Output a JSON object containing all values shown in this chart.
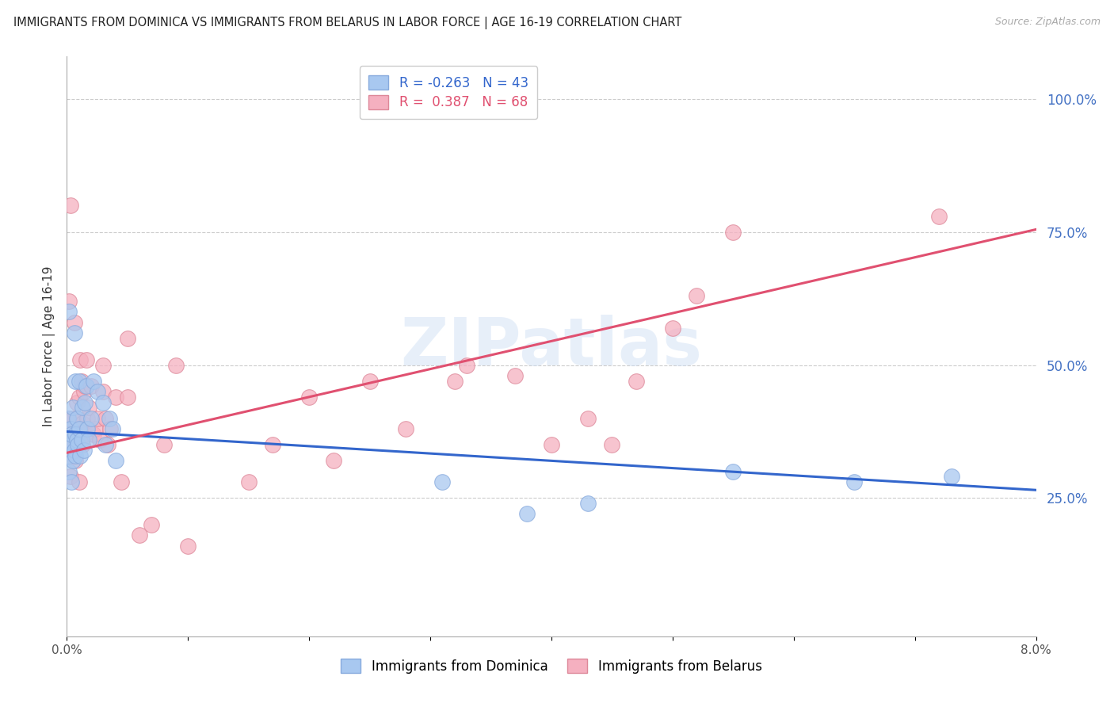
{
  "title": "IMMIGRANTS FROM DOMINICA VS IMMIGRANTS FROM BELARUS IN LABOR FORCE | AGE 16-19 CORRELATION CHART",
  "source": "Source: ZipAtlas.com",
  "ylabel": "In Labor Force | Age 16-19",
  "xlim": [
    0.0,
    0.08
  ],
  "ylim": [
    -0.01,
    1.08
  ],
  "xticks": [
    0.0,
    0.01,
    0.02,
    0.03,
    0.04,
    0.05,
    0.06,
    0.07,
    0.08
  ],
  "xticklabels": [
    "0.0%",
    "",
    "",
    "",
    "",
    "",
    "",
    "",
    "8.0%"
  ],
  "yticks_right": [
    0.25,
    0.5,
    0.75,
    1.0
  ],
  "yticklabels_right": [
    "25.0%",
    "50.0%",
    "75.0%",
    "100.0%"
  ],
  "grid_color": "#cccccc",
  "background_color": "#ffffff",
  "dominica_color": "#a8c8f0",
  "belarus_color": "#f5b0c0",
  "dominica_edge": "#88aadd",
  "belarus_edge": "#dd8899",
  "dominica_line_color": "#3366cc",
  "belarus_line_color": "#e05070",
  "legend_label_dominica": "Immigrants from Dominica",
  "legend_label_belarus": "Immigrants from Belarus",
  "R_dominica": -0.263,
  "N_dominica": 43,
  "R_belarus": 0.387,
  "N_belarus": 68,
  "watermark": "ZIPatlas",
  "dom_trend_x": [
    0.0,
    0.08
  ],
  "dom_trend_y": [
    0.375,
    0.265
  ],
  "bel_trend_x": [
    0.0,
    0.08
  ],
  "bel_trend_y": [
    0.335,
    0.755
  ],
  "dominica_x": [
    0.0001,
    0.0001,
    0.0002,
    0.0002,
    0.0002,
    0.0003,
    0.0003,
    0.0004,
    0.0004,
    0.0005,
    0.0005,
    0.0006,
    0.0006,
    0.0007,
    0.0007,
    0.0007,
    0.0008,
    0.0008,
    0.0009,
    0.001,
    0.001,
    0.0011,
    0.0012,
    0.0013,
    0.0014,
    0.0015,
    0.0016,
    0.0017,
    0.0018,
    0.002,
    0.0022,
    0.0025,
    0.003,
    0.0032,
    0.0035,
    0.0038,
    0.004,
    0.031,
    0.038,
    0.043,
    0.055,
    0.065,
    0.073
  ],
  "dominica_y": [
    0.33,
    0.4,
    0.36,
    0.6,
    0.3,
    0.38,
    0.35,
    0.37,
    0.28,
    0.32,
    0.42,
    0.34,
    0.56,
    0.33,
    0.37,
    0.47,
    0.4,
    0.36,
    0.35,
    0.47,
    0.38,
    0.33,
    0.36,
    0.42,
    0.34,
    0.43,
    0.46,
    0.38,
    0.36,
    0.4,
    0.47,
    0.45,
    0.43,
    0.35,
    0.4,
    0.38,
    0.32,
    0.28,
    0.22,
    0.24,
    0.3,
    0.28,
    0.29
  ],
  "belarus_x": [
    0.0001,
    0.0001,
    0.0002,
    0.0002,
    0.0003,
    0.0003,
    0.0004,
    0.0004,
    0.0005,
    0.0005,
    0.0005,
    0.0006,
    0.0006,
    0.0007,
    0.0007,
    0.0008,
    0.0008,
    0.0009,
    0.001,
    0.001,
    0.001,
    0.0011,
    0.0012,
    0.0013,
    0.0013,
    0.0014,
    0.0015,
    0.0015,
    0.0016,
    0.0016,
    0.0017,
    0.0018,
    0.002,
    0.0022,
    0.0023,
    0.0025,
    0.0027,
    0.003,
    0.003,
    0.0032,
    0.0034,
    0.0036,
    0.004,
    0.0045,
    0.005,
    0.005,
    0.006,
    0.007,
    0.008,
    0.009,
    0.01,
    0.015,
    0.017,
    0.02,
    0.022,
    0.025,
    0.028,
    0.032,
    0.033,
    0.037,
    0.04,
    0.043,
    0.045,
    0.047,
    0.05,
    0.052,
    0.055,
    0.072
  ],
  "belarus_y": [
    0.33,
    0.4,
    0.36,
    0.62,
    0.29,
    0.8,
    0.36,
    0.34,
    0.4,
    0.33,
    0.38,
    0.35,
    0.58,
    0.36,
    0.32,
    0.4,
    0.43,
    0.37,
    0.28,
    0.44,
    0.36,
    0.51,
    0.47,
    0.39,
    0.35,
    0.45,
    0.46,
    0.37,
    0.38,
    0.51,
    0.4,
    0.42,
    0.46,
    0.37,
    0.38,
    0.4,
    0.36,
    0.45,
    0.5,
    0.4,
    0.35,
    0.38,
    0.44,
    0.28,
    0.44,
    0.55,
    0.18,
    0.2,
    0.35,
    0.5,
    0.16,
    0.28,
    0.35,
    0.44,
    0.32,
    0.47,
    0.38,
    0.47,
    0.5,
    0.48,
    0.35,
    0.4,
    0.35,
    0.47,
    0.57,
    0.63,
    0.75,
    0.78
  ]
}
